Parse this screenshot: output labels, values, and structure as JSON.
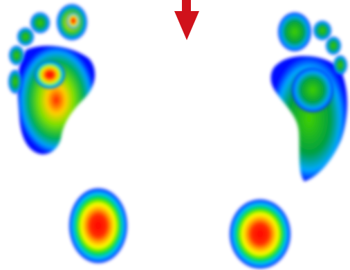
{
  "scene": {
    "background": "#ffffff",
    "direction_arrow_color": "#d0121b",
    "pressure_scale": [
      "#0000ff",
      "#00ffff",
      "#00ff00",
      "#ffff00",
      "#ff7f00",
      "#ff0000"
    ]
  }
}
